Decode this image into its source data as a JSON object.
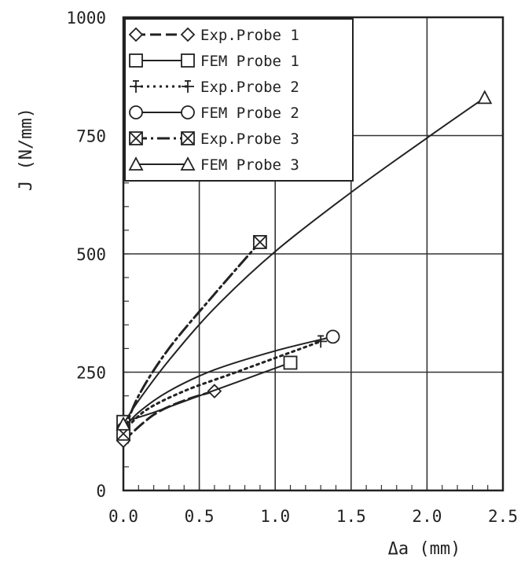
{
  "chart_data": {
    "type": "line",
    "xlabel": "Δa (mm)",
    "ylabel": "J (N/mm)",
    "xlim": [
      0,
      2.5
    ],
    "ylim": [
      0,
      1000
    ],
    "xticks": [
      {
        "value": 0.0,
        "label": "0.0"
      },
      {
        "value": 0.5,
        "label": "0.5"
      },
      {
        "value": 1.0,
        "label": "1.0"
      },
      {
        "value": 1.5,
        "label": "1.5"
      },
      {
        "value": 2.0,
        "label": "2.0"
      },
      {
        "value": 2.5,
        "label": "2.5"
      }
    ],
    "yticks": [
      {
        "value": 0,
        "label": "0"
      },
      {
        "value": 250,
        "label": "250"
      },
      {
        "value": 500,
        "label": "500"
      },
      {
        "value": 750,
        "label": "750"
      },
      {
        "value": 1000,
        "label": "1000"
      }
    ],
    "grid": true,
    "legend_position": "top-left",
    "series": [
      {
        "name": "Exp.Probe 1",
        "line": "dashed",
        "marker": "diamond",
        "x": [
          0.0,
          0.2,
          0.4,
          0.6
        ],
        "y": [
          105,
          160,
          190,
          210
        ]
      },
      {
        "name": "FEM Probe 1",
        "line": "solid",
        "marker": "square",
        "x": [
          0.0,
          0.2,
          0.5,
          0.8,
          1.1
        ],
        "y": [
          145,
          165,
          200,
          235,
          270
        ]
      },
      {
        "name": "Exp.Probe 2",
        "line": "dotted",
        "marker": "cross",
        "x": [
          0.0,
          0.15,
          0.4,
          0.7,
          1.0,
          1.3
        ],
        "y": [
          125,
          170,
          210,
          245,
          280,
          315
        ]
      },
      {
        "name": "FEM Probe 2",
        "line": "solid",
        "marker": "circle",
        "x": [
          0.0,
          0.1,
          0.3,
          0.6,
          1.0,
          1.38
        ],
        "y": [
          130,
          165,
          210,
          255,
          295,
          325
        ]
      },
      {
        "name": "Exp.Probe 3",
        "line": "dashdot",
        "marker": "square-x",
        "x": [
          0.0,
          0.1,
          0.3,
          0.6,
          0.9
        ],
        "y": [
          120,
          200,
          300,
          415,
          525
        ]
      },
      {
        "name": "FEM Probe 3",
        "line": "solid",
        "marker": "triangle",
        "x": [
          0.0,
          0.1,
          0.3,
          0.6,
          1.0,
          1.5,
          2.0,
          2.38
        ],
        "y": [
          140,
          190,
          275,
          385,
          505,
          630,
          745,
          830
        ]
      }
    ]
  }
}
